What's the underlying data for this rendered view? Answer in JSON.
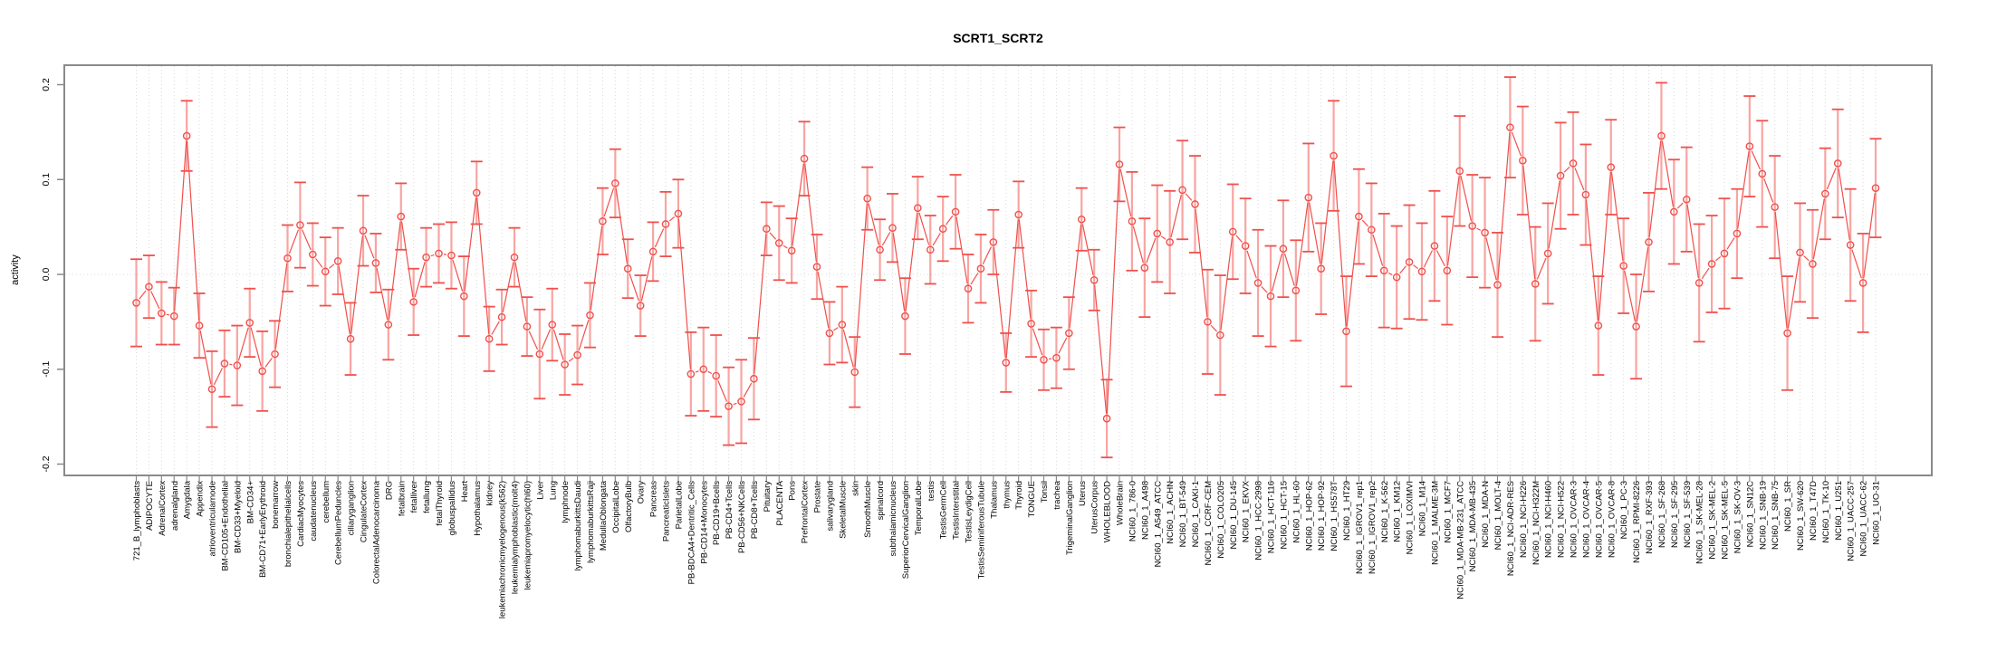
{
  "chart_data": {
    "type": "line",
    "title": "SCRT1_SCRT2",
    "ylabel": "activity",
    "xlabel": "",
    "ylim": [
      -0.212,
      0.221
    ],
    "yticks": [
      -0.2,
      -0.1,
      0.0,
      0.1,
      0.2
    ],
    "grid": {
      "vertical_per_category": true,
      "horizontal_zero_line": true,
      "style": "dotted"
    },
    "legend": "none",
    "marker": "open-circle",
    "error_bars": true,
    "colors": {
      "line": "#F0504C",
      "marker": "#F0504C",
      "error_bar": "#F7A5A2",
      "grid": "#D9D9D9",
      "axis_box": "#8A8A8A",
      "text": "#000000",
      "background": "#FFFFFF"
    },
    "categories": [
      "721_B_lymphoblasts",
      "ADIPOCYTE",
      "AdrenalCortex",
      "adrenalgland",
      "Amygdala",
      "Appendix",
      "atrioventricularnode",
      "BM-CD105+Endothelial",
      "BM-CD33+Myeloid",
      "BM-CD34+",
      "BM-CD71+EarlyErythroid",
      "bonemarrow",
      "bronchialepithelialcells",
      "CardiacMyocytes",
      "caudatenucleus",
      "cerebellum",
      "CerebellumPeduncles",
      "ciliaryganglion",
      "CingulateCortex",
      "ColorectalAdenocarcinoma",
      "DRG",
      "fetalbrain",
      "fetalliver",
      "fetallung",
      "fetalThyroid",
      "globuspallidus",
      "Heart",
      "Hypothalamus",
      "kidney",
      "leukemiachronicmyelogenous(k562)",
      "leukemialymphoblastic(molt4)",
      "leukemiapromyelocytic(hl60)",
      "Liver",
      "Lung",
      "lymphnode",
      "lymphomaburkittsDaudi",
      "lymphomaburkittsRaji",
      "MedullaOblongata",
      "OccipitalLobe",
      "OlfactoryBulb",
      "Ovary",
      "Pancreas",
      "PancreaticIslets",
      "ParietalLobe",
      "PB-BDCA4+Dentritic_Cells",
      "PB-CD14+Monocytes",
      "PB-CD19+Bcells",
      "PB-CD4+Tcells",
      "PB-CD56+NKCells",
      "PB-CD8+Tcells",
      "Pituitary",
      "PLACENTA",
      "Pons",
      "PrefrontalCortex",
      "Prostate",
      "salivarygland",
      "SkeletalMuscle",
      "skin",
      "SmoothMuscle",
      "spinalcord",
      "subthalamicnucleus",
      "SuperiorCervicalGanglion",
      "TemporalLobe",
      "testis",
      "TestisGermCell",
      "TestisInterstitial",
      "TestisLeydigCell",
      "TestisSeminiferousTubule",
      "Thalamus",
      "thymus",
      "Thyroid",
      "TONGUE",
      "Tonsil",
      "trachea",
      "TrigeminalGanglion",
      "Uterus",
      "UterusCorpus",
      "WHOLEBLOOD",
      "WholeBrain",
      "NCI60_1_786-0",
      "NCI60_1_A498",
      "NCI60_1_A549_ATCC",
      "NCI60_1_ACHN",
      "NCI60_1_BT-549",
      "NCI60_1_CAKI-1",
      "NCI60_1_CCRF-CEM",
      "NCI60_1_COLO205",
      "NCI60_1_DU-145",
      "NCI60_1_EKVX",
      "NCI60_1_HCC-2998",
      "NCI60_1_HCT-116",
      "NCI60_1_HCT-15",
      "NCI60_1_HL-60",
      "NCI60_1_HOP-62",
      "NCI60_1_HOP-92",
      "NCI60_1_HS578T",
      "NCI60_1_HT29",
      "NCI60_1_IGROV1_rep1",
      "NCI60_1_IGROV1_rep2",
      "NCI60_1_K-562",
      "NCI60_1_KM12",
      "NCI60_1_LOXIMVI",
      "NCI60_1_M14",
      "NCI60_1_MALME-3M",
      "NCI60_1_MCF7",
      "NCI60_1_MDA-MB-231_ATCC",
      "NCI60_1_MDA-MB-435",
      "NCI60_1_MDA-N",
      "NCI60_1_MOLT-4",
      "NCI60_1_NCI-ADR-RES",
      "NCI60_1_NCI-H226",
      "NCI60_1_NCI-H322M",
      "NCI60_1_NCI-H460",
      "NCI60_1_NCI-H522",
      "NCI60_1_OVCAR-3",
      "NCI60_1_OVCAR-4",
      "NCI60_1_OVCAR-5",
      "NCI60_1_OVCAR-8",
      "NCI60_1_PC-3",
      "NCI60_1_RPMI-8226",
      "NCI60_1_RXF-393",
      "NCI60_1_SF-268",
      "NCI60_1_SF-295",
      "NCI60_1_SF-539",
      "NCI60_1_SK-MEL-28",
      "NCI60_1_SK-MEL-2",
      "NCI60_1_SK-MEL-5",
      "NCI60_1_SK-OV-3",
      "NCI60_1_SN12C",
      "NCI60_1_SNB-19",
      "NCI60_1_SNB-75",
      "NCI60_1_SR",
      "NCI60_1_SW-620",
      "NCI60_1_T47D",
      "NCI60_1_TK-10",
      "NCI60_1_U251",
      "NCI60_1_UACC-257",
      "NCI60_1_UACC-62",
      "NCI60_1_UO-31"
    ],
    "series": [
      {
        "name": "activity",
        "values": [
          -0.03,
          -0.013,
          -0.041,
          -0.044,
          0.146,
          -0.054,
          -0.121,
          -0.094,
          -0.096,
          -0.051,
          -0.102,
          -0.084,
          0.017,
          0.052,
          0.021,
          0.003,
          0.014,
          -0.068,
          0.046,
          0.012,
          -0.053,
          0.061,
          -0.029,
          0.018,
          0.022,
          0.02,
          -0.023,
          0.086,
          -0.068,
          -0.045,
          0.018,
          -0.055,
          -0.084,
          -0.053,
          -0.095,
          -0.085,
          -0.043,
          0.056,
          0.096,
          0.006,
          -0.033,
          0.024,
          0.053,
          0.064,
          -0.105,
          -0.1,
          -0.107,
          -0.139,
          -0.134,
          -0.11,
          0.048,
          0.033,
          0.025,
          0.122,
          0.008,
          -0.062,
          -0.053,
          -0.103,
          0.08,
          0.026,
          0.049,
          -0.044,
          0.07,
          0.026,
          0.048,
          0.066,
          -0.015,
          0.006,
          0.034,
          -0.093,
          0.063,
          -0.052,
          -0.09,
          -0.088,
          -0.062,
          0.058,
          -0.006,
          -0.152,
          0.116,
          0.056,
          0.007,
          0.043,
          0.034,
          0.089,
          0.074,
          -0.05,
          -0.064,
          0.045,
          0.03,
          -0.009,
          -0.023,
          0.027,
          -0.017,
          0.081,
          0.006,
          0.125,
          -0.06,
          0.061,
          0.047,
          0.004,
          -0.003,
          0.013,
          0.003,
          0.03,
          0.004,
          0.109,
          0.051,
          0.044,
          -0.011,
          0.155,
          0.12,
          -0.01,
          0.022,
          0.104,
          0.117,
          0.084,
          -0.054,
          0.113,
          0.009,
          -0.055,
          0.034,
          0.146,
          0.066,
          0.079,
          -0.009,
          0.011,
          0.022,
          0.043,
          0.135,
          0.106,
          0.071,
          -0.062,
          0.023,
          0.011,
          0.085,
          0.117,
          0.031,
          -0.009,
          0.091
        ],
        "errors": [
          0.046,
          0.033,
          0.033,
          0.03,
          0.037,
          0.034,
          0.04,
          0.035,
          0.042,
          0.036,
          0.042,
          0.035,
          0.035,
          0.045,
          0.033,
          0.036,
          0.035,
          0.038,
          0.037,
          0.031,
          0.037,
          0.035,
          0.035,
          0.031,
          0.031,
          0.035,
          0.042,
          0.033,
          0.034,
          0.029,
          0.031,
          0.031,
          0.047,
          0.038,
          0.032,
          0.031,
          0.034,
          0.035,
          0.036,
          0.031,
          0.032,
          0.031,
          0.034,
          0.036,
          0.044,
          0.044,
          0.043,
          0.041,
          0.044,
          0.043,
          0.028,
          0.039,
          0.034,
          0.039,
          0.034,
          0.033,
          0.04,
          0.037,
          0.033,
          0.032,
          0.036,
          0.04,
          0.033,
          0.036,
          0.034,
          0.039,
          0.036,
          0.036,
          0.034,
          0.031,
          0.035,
          0.035,
          0.032,
          0.032,
          0.038,
          0.033,
          0.032,
          0.041,
          0.039,
          0.052,
          0.052,
          0.051,
          0.054,
          0.052,
          0.051,
          0.055,
          0.063,
          0.05,
          0.05,
          0.056,
          0.053,
          0.051,
          0.053,
          0.057,
          0.048,
          0.058,
          0.058,
          0.05,
          0.049,
          0.06,
          0.054,
          0.06,
          0.051,
          0.058,
          0.057,
          0.058,
          0.054,
          0.058,
          0.055,
          0.053,
          0.057,
          0.06,
          0.053,
          0.056,
          0.054,
          0.053,
          0.052,
          0.05,
          0.05,
          0.055,
          0.052,
          0.056,
          0.055,
          0.055,
          0.062,
          0.051,
          0.058,
          0.047,
          0.053,
          0.056,
          0.054,
          0.06,
          0.052,
          0.057,
          0.048,
          0.057,
          0.059,
          0.052,
          0.052
        ]
      }
    ]
  }
}
